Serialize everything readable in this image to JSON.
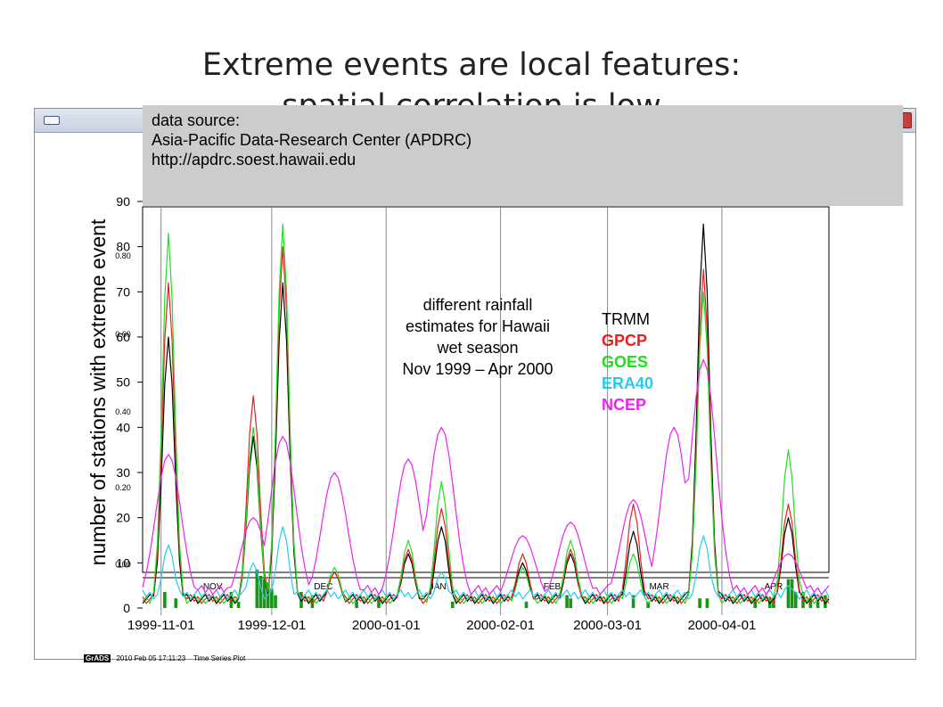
{
  "slide": {
    "title_line1": "Extreme events are local features:",
    "title_line2": "spatial correlation is low"
  },
  "source_box": {
    "line1": "data source:",
    "line2": "Asia-Pacific Data-Research Center (APDRC)",
    "line3": "http://apdrc.soest.hawaii.edu"
  },
  "annotation": {
    "line1": "different rainfall",
    "line2": "estimates for Hawaii",
    "line3": "wet season",
    "line4": "Nov 1999 – Apr 2000"
  },
  "footer": {
    "logo": "GrADS",
    "timestamp": "2010 Feb 05 17:11:23",
    "label": "Time Series Plot"
  },
  "colors": {
    "TRMM": "#000000",
    "GPCP": "#e8201c",
    "GOES": "#22dd22",
    "ERA40": "#22ccf0",
    "NCEP": "#ee22ee",
    "bars": "#119911"
  },
  "chart_data": {
    "type": "line",
    "ylabel": "number of stations with extreme event",
    "ylim": [
      0,
      90
    ],
    "y_ticks": [
      0,
      10,
      20,
      30,
      40,
      50,
      60,
      70,
      80,
      90
    ],
    "inner_tick_labels": [
      "0.00",
      "0.20",
      "0.40",
      "0.60",
      "0.80"
    ],
    "month_labels": [
      "NOV",
      "DEC",
      "JAN",
      "FEB",
      "MAR",
      "APR"
    ],
    "date_labels": [
      "1999-11-01",
      "1999-12-01",
      "2000-01-01",
      "2000-02-01",
      "2000-03-01",
      "2000-04-01"
    ],
    "x_range": [
      "1999-10-27",
      "2000-04-30"
    ],
    "legend": [
      "TRMM",
      "GPCP",
      "GOES",
      "ERA40",
      "NCEP"
    ],
    "legend_position": "top-center",
    "grid": true,
    "series": [
      {
        "name": "TRMM",
        "peaks": [
          [
            "1999-11-03",
            60
          ],
          [
            "1999-11-26",
            38
          ],
          [
            "1999-12-04",
            72
          ],
          [
            "1999-12-18",
            8
          ],
          [
            "2000-01-07",
            12
          ],
          [
            "2000-01-16",
            18
          ],
          [
            "2000-02-07",
            10
          ],
          [
            "2000-02-20",
            12
          ],
          [
            "2000-03-08",
            17
          ],
          [
            "2000-03-27",
            85
          ],
          [
            "2000-04-19",
            20
          ]
        ]
      },
      {
        "name": "GPCP",
        "peaks": [
          [
            "1999-11-03",
            72
          ],
          [
            "1999-11-26",
            47
          ],
          [
            "1999-12-04",
            80
          ],
          [
            "1999-12-18",
            8
          ],
          [
            "2000-01-07",
            13
          ],
          [
            "2000-01-16",
            22
          ],
          [
            "2000-02-07",
            12
          ],
          [
            "2000-02-20",
            13
          ],
          [
            "2000-03-08",
            23
          ],
          [
            "2000-03-27",
            75
          ],
          [
            "2000-04-19",
            23
          ]
        ]
      },
      {
        "name": "GOES",
        "peaks": [
          [
            "1999-11-03",
            83
          ],
          [
            "1999-11-26",
            40
          ],
          [
            "1999-12-04",
            85
          ],
          [
            "1999-12-18",
            9
          ],
          [
            "2000-01-07",
            15
          ],
          [
            "2000-01-16",
            28
          ],
          [
            "2000-02-07",
            9
          ],
          [
            "2000-02-20",
            15
          ],
          [
            "2000-03-08",
            12
          ],
          [
            "2000-03-27",
            70
          ],
          [
            "2000-04-19",
            35
          ]
        ]
      },
      {
        "name": "ERA40",
        "peaks": [
          [
            "1999-11-03",
            14
          ],
          [
            "1999-11-26",
            10
          ],
          [
            "1999-12-04",
            18
          ],
          [
            "2000-01-16",
            8
          ],
          [
            "2000-03-27",
            16
          ],
          [
            "2000-04-19",
            5
          ]
        ]
      },
      {
        "name": "NCEP",
        "peaks": [
          [
            "1999-11-03",
            34
          ],
          [
            "1999-11-26",
            20
          ],
          [
            "1999-12-04",
            38
          ],
          [
            "1999-12-18",
            30
          ],
          [
            "2000-01-07",
            33
          ],
          [
            "2000-01-16",
            40
          ],
          [
            "2000-02-07",
            16
          ],
          [
            "2000-02-20",
            19
          ],
          [
            "2000-03-08",
            24
          ],
          [
            "2000-03-19",
            40
          ],
          [
            "2000-03-27",
            55
          ],
          [
            "2000-04-19",
            12
          ]
        ]
      }
    ],
    "bar_events": [
      {
        "date": "1999-11-02",
        "value": 5
      },
      {
        "date": "1999-11-05",
        "value": 3
      },
      {
        "date": "1999-11-20",
        "value": 5
      },
      {
        "date": "1999-11-22",
        "value": 2
      },
      {
        "date": "1999-11-27",
        "value": 12
      },
      {
        "date": "1999-11-28",
        "value": 10
      },
      {
        "date": "1999-11-29",
        "value": 9
      },
      {
        "date": "1999-11-30",
        "value": 8
      },
      {
        "date": "1999-12-01",
        "value": 6
      },
      {
        "date": "1999-12-02",
        "value": 4
      },
      {
        "date": "1999-12-09",
        "value": 5
      },
      {
        "date": "1999-12-12",
        "value": 4
      },
      {
        "date": "1999-12-24",
        "value": 2
      },
      {
        "date": "1999-12-30",
        "value": 3
      },
      {
        "date": "2000-01-19",
        "value": 2
      },
      {
        "date": "2000-02-08",
        "value": 2
      },
      {
        "date": "2000-02-19",
        "value": 4
      },
      {
        "date": "2000-02-20",
        "value": 3
      },
      {
        "date": "2000-03-08",
        "value": 4
      },
      {
        "date": "2000-03-12",
        "value": 2
      },
      {
        "date": "2000-03-26",
        "value": 3
      },
      {
        "date": "2000-03-28",
        "value": 3
      },
      {
        "date": "2000-04-10",
        "value": 3
      },
      {
        "date": "2000-04-14",
        "value": 3
      },
      {
        "date": "2000-04-15",
        "value": 3
      },
      {
        "date": "2000-04-19",
        "value": 9
      },
      {
        "date": "2000-04-20",
        "value": 9
      },
      {
        "date": "2000-04-21",
        "value": 5
      },
      {
        "date": "2000-04-23",
        "value": 5
      },
      {
        "date": "2000-04-25",
        "value": 3
      },
      {
        "date": "2000-04-27",
        "value": 2
      },
      {
        "date": "2000-04-29",
        "value": 4
      }
    ]
  }
}
